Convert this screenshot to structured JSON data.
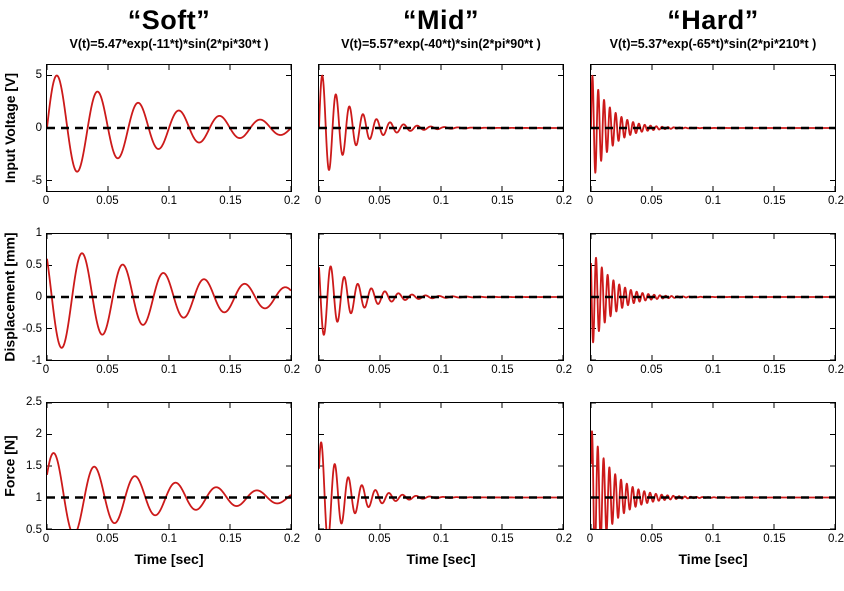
{
  "chart_data": {
    "type": "line",
    "title": "",
    "columns": [
      {
        "title": "“Soft”",
        "equation": "V(t)=5.47*exp(-11*t)*sin(2*pi*30*t )"
      },
      {
        "title": "“Mid”",
        "equation": "V(t)=5.57*exp(-40*t)*sin(2*pi*90*t )"
      },
      {
        "title": "“Hard”",
        "equation": "V(t)=5.37*exp(-65*t)*sin(2*pi*210*t )"
      }
    ],
    "rows": [
      {
        "ylabel": "Input Voltage [V]",
        "ylim": [
          -6,
          6
        ],
        "yticks": [
          -5,
          0,
          5
        ],
        "baseline": 0
      },
      {
        "ylabel": "Displacement [mm]",
        "ylim": [
          -1,
          1
        ],
        "yticks": [
          -1,
          -0.5,
          0,
          0.5,
          1
        ],
        "baseline": 0
      },
      {
        "ylabel": "Force [N]",
        "ylim": [
          0.5,
          2.5
        ],
        "yticks": [
          0.5,
          1,
          1.5,
          2,
          2.5
        ],
        "baseline": 1
      }
    ],
    "x": {
      "label": "Time [sec]",
      "xlim": [
        0,
        0.2
      ],
      "xticks": [
        0,
        0.05,
        0.1,
        0.15,
        0.2
      ]
    },
    "series": [
      {
        "row": "Input Voltage [V]",
        "column": "Soft",
        "model": "damped_sine",
        "amplitude": 5.47,
        "decay": 11,
        "frequency_hz": 30,
        "phase_rad": 0,
        "baseline": 0
      },
      {
        "row": "Input Voltage [V]",
        "column": "Mid",
        "model": "damped_sine",
        "amplitude": 5.57,
        "decay": 40,
        "frequency_hz": 90,
        "phase_rad": 0,
        "baseline": 0
      },
      {
        "row": "Input Voltage [V]",
        "column": "Hard",
        "model": "damped_sine",
        "amplitude": 5.37,
        "decay": 65,
        "frequency_hz": 210,
        "phase_rad": 0,
        "baseline": 0
      },
      {
        "row": "Displacement [mm]",
        "column": "Soft",
        "model": "damped_sine",
        "amplitude": 0.9,
        "decay": 9,
        "frequency_hz": 30,
        "phase_rad": 2.4,
        "baseline": 0
      },
      {
        "row": "Displacement [mm]",
        "column": "Mid",
        "model": "damped_sine",
        "amplitude": 0.7,
        "decay": 38,
        "frequency_hz": 90,
        "phase_rad": 2.4,
        "baseline": 0
      },
      {
        "row": "Displacement [mm]",
        "column": "Hard",
        "model": "damped_sine",
        "amplitude": 0.8,
        "decay": 60,
        "frequency_hz": 210,
        "phase_rad": 2.4,
        "baseline": 0
      },
      {
        "row": "Force [N]",
        "column": "Soft",
        "model": "damped_sine",
        "amplitude": 0.75,
        "decay": 11,
        "frequency_hz": 30,
        "phase_rad": 0.5,
        "baseline": 1
      },
      {
        "row": "Force [N]",
        "column": "Mid",
        "model": "damped_sine",
        "amplitude": 0.95,
        "decay": 45,
        "frequency_hz": 90,
        "phase_rad": 0.5,
        "baseline": 1
      },
      {
        "row": "Force [N]",
        "column": "Hard",
        "model": "damped_sine",
        "amplitude": 1.1,
        "decay": 55,
        "frequency_hz": 210,
        "phase_rad": 0.5,
        "baseline": 1
      }
    ],
    "style": {
      "line_color": "#cc1a1a",
      "baseline_color": "#000000",
      "baseline_dash": "8 6"
    }
  }
}
